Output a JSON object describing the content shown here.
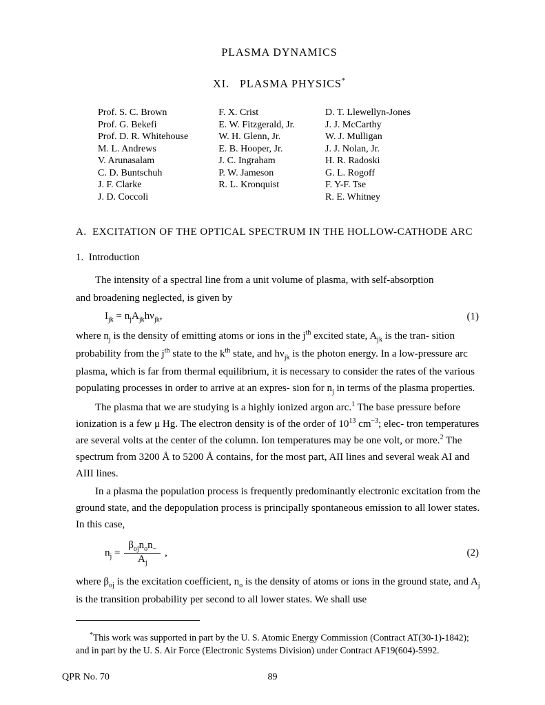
{
  "header": {
    "supertitle": "PLASMA DYNAMICS",
    "title_prefix": "XI.",
    "title_main": "PLASMA PHYSICS",
    "title_marker": "*"
  },
  "authors": {
    "col1": [
      "Prof. S. C. Brown",
      "Prof. G. Bekefi",
      "Prof. D. R. Whitehouse",
      "M. L. Andrews",
      "V. Arunasalam",
      "C. D. Buntschuh",
      "J. F. Clarke",
      "J. D. Coccoli"
    ],
    "col2": [
      "F. X. Crist",
      "E. W. Fitzgerald, Jr.",
      "W. H. Glenn, Jr.",
      "E. B. Hooper, Jr.",
      "J. C. Ingraham",
      "P. W. Jameson",
      "R. L. Kronquist"
    ],
    "col3": [
      "D. T. Llewellyn-Jones",
      "J. J. McCarthy",
      "W. J. Mulligan",
      "J. J. Nolan, Jr.",
      "H. R. Radoski",
      "G. L. Rogoff",
      "F. Y-F. Tse",
      "R. E. Whitney"
    ]
  },
  "section": {
    "label": "A.",
    "title": "EXCITATION OF THE OPTICAL SPECTRUM IN THE HOLLOW-CATHODE ARC"
  },
  "subsection": {
    "label": "1.",
    "title": "Introduction"
  },
  "para1a": "The intensity of a spectral line from a unit volume of plasma, with self-absorption",
  "para1b": "and broadening neglected, is given by",
  "eq1": {
    "lhs_sym": "I",
    "lhs_sub": "jk",
    "rhs_pieces": [
      "= n",
      "j",
      "A",
      "jk",
      "hν",
      "jk",
      ","
    ],
    "num": "(1)"
  },
  "para2": {
    "t1": "where n",
    "t2": " is the density of emitting atoms or ions in the j",
    "t3": " excited state, A",
    "t4": " is the tran-",
    "t5": "sition probability from the j",
    "t6": " state to the k",
    "t7": " state, and hν",
    "t8": " is the photon energy.  In",
    "t9": "a low-pressure arc plasma, which is far from thermal equilibrium, it is necessary to",
    "t10": "consider the rates of the various populating processes in order to arrive at an expres-",
    "t11": "sion for n",
    "t12": " in terms of the plasma properties.",
    "sub_j": "j",
    "sup_th": "th",
    "sub_jk": "jk"
  },
  "para3": {
    "t1": "The plasma that we are studying is a highly ionized argon arc.",
    "ref1": "1",
    "t2": "  The base pressure",
    "t3": "before ionization is a few μ Hg.  The electron density is of the order of 10",
    "sup13": "13",
    "t4": " cm",
    "supm3": "−3",
    "t5": "; elec-",
    "t6": "tron temperatures are several volts at the center of the column.  Ion temperatures may",
    "t7": "be one volt, or more.",
    "ref2": "2",
    "t8": "  The spectrum from 3200 Å to 5200 Å contains, for the most part,",
    "t9": "AII lines and several weak AI and AIII lines."
  },
  "para4": {
    "t1": "In a plasma the population process is frequently predominantly electronic excitation",
    "t2": "from the ground state, and the depopulation process is principally spontaneous emission",
    "t3": "to all lower states.  In this case,"
  },
  "eq2": {
    "lhs_sym": "n",
    "lhs_sub": "j",
    "top_pieces": [
      "β",
      "oj",
      "n",
      "o",
      "n",
      "−"
    ],
    "bot_pieces": [
      "A",
      "j"
    ],
    "num": "(2)",
    "trail": ","
  },
  "para5": {
    "t1": "where β",
    "sub_oj": "oj",
    "t2": " is the excitation coefficient, n",
    "sub_o": "o",
    "t3": " is the density of atoms or ions in the ground",
    "t4": "state, and A",
    "sub_j": "j",
    "t5": " is the transition probability per second to all lower states.  We shall use"
  },
  "footnote": {
    "marker": "*",
    "text": "This work was supported in part by the U. S. Atomic Energy Commission (Contract AT(30-1)-1842); and in part by the U. S. Air Force (Electronic Systems Division) under Contract AF19(604)-5992."
  },
  "footer": {
    "left": "QPR No. 70",
    "page": "89"
  }
}
